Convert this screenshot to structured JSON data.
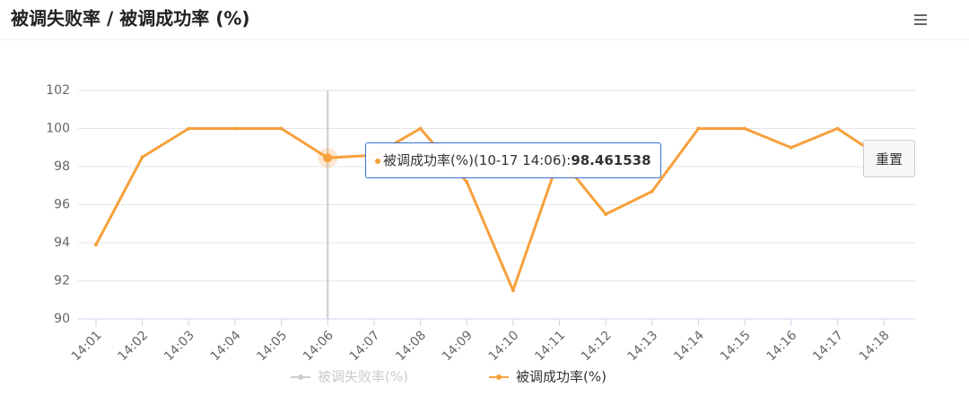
{
  "chart_data": {
    "type": "line",
    "title": "被调失败率 / 被调成功率 (%)",
    "categories": [
      "14:01",
      "14:02",
      "14:03",
      "14:04",
      "14:05",
      "14:06",
      "14:07",
      "14:08",
      "14:09",
      "14:10",
      "14:11",
      "14:12",
      "14:13",
      "14:14",
      "14:15",
      "14:16",
      "14:17",
      "14:18"
    ],
    "series": [
      {
        "name": "被调失败率(%)",
        "color": "#cccccc",
        "hidden": true,
        "values": [
          null,
          null,
          null,
          null,
          null,
          null,
          null,
          null,
          null,
          null,
          null,
          null,
          null,
          null,
          null,
          null,
          null,
          null
        ]
      },
      {
        "name": "被调成功率(%)",
        "color": "#f7a03c",
        "values": [
          93.9,
          98.5,
          100,
          100,
          100,
          98.461538,
          98.6,
          100,
          97.2,
          91.5,
          98.5,
          95.5,
          96.7,
          100,
          100,
          99,
          100,
          98.4
        ]
      }
    ],
    "ylim": [
      90,
      102
    ],
    "yticks": [
      90,
      92,
      94,
      96,
      98,
      100,
      102
    ],
    "grid": true,
    "hover_index": 5,
    "tooltip": {
      "label": "被调成功率(%)(10-17 14:06):"
    },
    "reset_button": "重置"
  }
}
